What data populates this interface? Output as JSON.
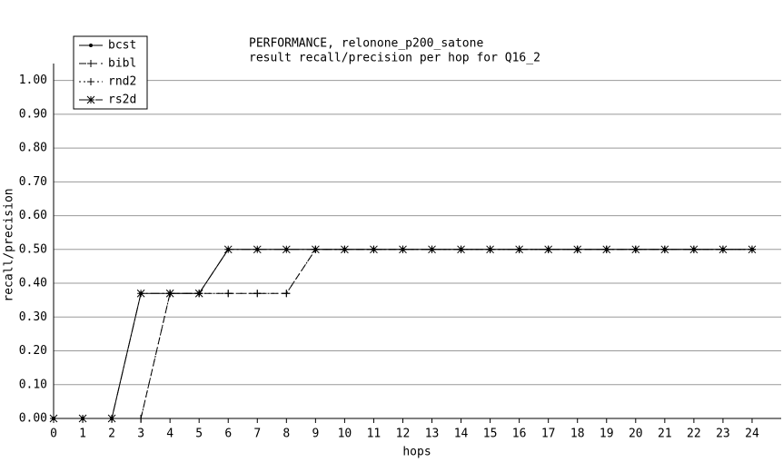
{
  "chart_data": {
    "type": "line",
    "title": "PERFORMANCE, relonone_p200_satone",
    "subtitle": "result recall/precision per hop for Q16_2",
    "x_label": "hops",
    "y_label": "recall/precision",
    "x": [
      0,
      1,
      2,
      3,
      4,
      5,
      6,
      7,
      8,
      9,
      10,
      11,
      12,
      13,
      14,
      15,
      16,
      17,
      18,
      19,
      20,
      21,
      22,
      23,
      24
    ],
    "series": [
      {
        "name": "bcst",
        "color": "#000000",
        "style": "solid",
        "marker": "dot",
        "values": [
          0,
          0,
          0,
          0.37,
          0.37,
          0.37,
          0.5,
          0.5,
          0.5,
          0.5,
          0.5,
          0.5,
          0.5,
          0.5,
          0.5,
          0.5,
          0.5,
          0.5,
          0.5,
          0.5,
          0.5,
          0.5,
          0.5,
          0.5,
          0.5
        ]
      },
      {
        "name": "bibl",
        "color": "#000000",
        "style": "dashed",
        "marker": "plus",
        "values": [
          0,
          0,
          0,
          0,
          0.37,
          0.37,
          0.37,
          0.37,
          0.37,
          0.5,
          0.5,
          0.5,
          0.5,
          0.5,
          0.5,
          0.5,
          0.5,
          0.5,
          0.5,
          0.5,
          0.5,
          0.5,
          0.5,
          0.5,
          0.5
        ]
      },
      {
        "name": "rnd2",
        "color": "#000000",
        "style": "dotted",
        "marker": "plus",
        "values": [
          0,
          0,
          0,
          0,
          0.37,
          0.37,
          0.37,
          0.37,
          0.37,
          0.5,
          0.5,
          0.5,
          0.5,
          0.5,
          0.5,
          0.5,
          0.5,
          0.5,
          0.5,
          0.5,
          0.5,
          0.5,
          0.5,
          0.5,
          0.5
        ]
      },
      {
        "name": "rs2d",
        "color": "#000000",
        "style": "dashdot",
        "marker": "star",
        "values": [
          0,
          0,
          0,
          0.37,
          0.37,
          0.37,
          0.5,
          0.5,
          0.5,
          0.5,
          0.5,
          0.5,
          0.5,
          0.5,
          0.5,
          0.5,
          0.5,
          0.5,
          0.5,
          0.5,
          0.5,
          0.5,
          0.5,
          0.5,
          0.5
        ]
      }
    ],
    "xlim": [
      0,
      25
    ],
    "xticks": [
      0,
      1,
      2,
      3,
      4,
      5,
      6,
      7,
      8,
      9,
      10,
      11,
      12,
      13,
      14,
      15,
      16,
      17,
      18,
      19,
      20,
      21,
      22,
      23,
      24
    ],
    "ylim": [
      0,
      1.05
    ],
    "yticks": [
      {
        "value": 0,
        "label": "0.00"
      },
      {
        "value": 0.1,
        "label": "0.10"
      },
      {
        "value": 0.2,
        "label": "0.20"
      },
      {
        "value": 0.3,
        "label": "0.30"
      },
      {
        "value": 0.4,
        "label": "0.40"
      },
      {
        "value": 0.5,
        "label": "0.50"
      },
      {
        "value": 0.6,
        "label": "0.60"
      },
      {
        "value": 0.7,
        "label": "0.70"
      },
      {
        "value": 0.8,
        "label": "0.80"
      },
      {
        "value": 0.9,
        "label": "0.90"
      },
      {
        "value": 1,
        "label": "1.00"
      }
    ],
    "grid": true,
    "legend": "top-left"
  }
}
